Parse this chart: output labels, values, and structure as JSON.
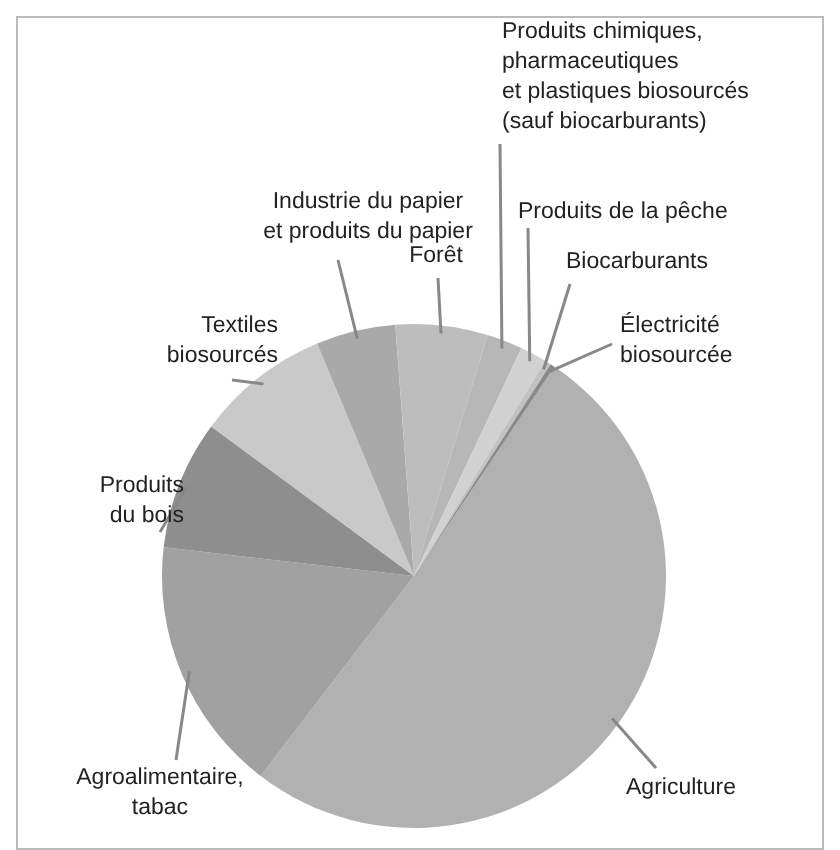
{
  "chart_data": {
    "type": "pie",
    "categories": [
      "Agriculture",
      "Agroalimentaire,\ntabac",
      "Produits\ndu bois",
      "Textiles\nbiosourcés",
      "Industrie du papier\net produits du papier",
      "Forêt",
      "Produits chimiques,\npharmaceutiques\net plastiques biosourcés\n(sauf biocarburants)",
      "Produits de la pêche",
      "Biocarburants",
      "Électricité\nbiosourcée"
    ],
    "values": [
      51,
      16.4,
      8.3,
      8.6,
      5.1,
      5.9,
      2.3,
      1.7,
      0.4,
      0.3
    ],
    "colors": [
      "#b1b1b1",
      "#a1a1a1",
      "#8e8e8e",
      "#c9c9c9",
      "#a9a9a9",
      "#bdbdbd",
      "#b7b7b7",
      "#d1d1d1",
      "#c2c2c2",
      "#8a8a8a"
    ]
  }
}
